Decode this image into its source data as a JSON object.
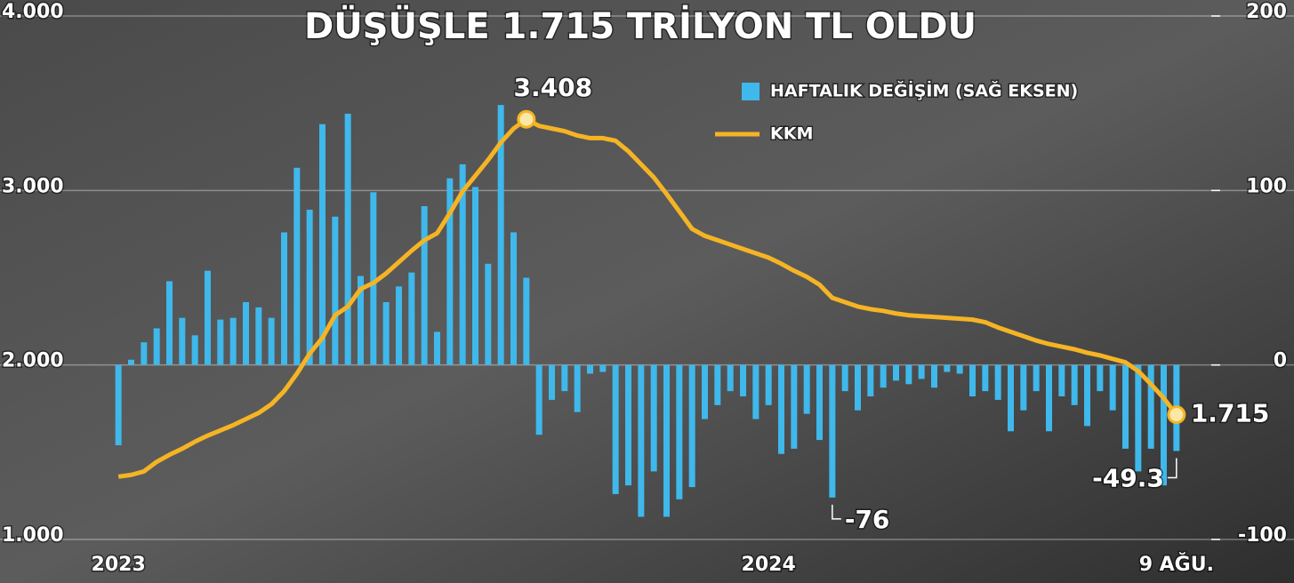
{
  "chart_data": {
    "type": "combo",
    "title": "DÜŞÜŞLE 1.715 TRİLYON TL OLDU",
    "categories": [
      "2023",
      null,
      null,
      null,
      null,
      null,
      null,
      null,
      null,
      null,
      null,
      null,
      null,
      null,
      null,
      null,
      null,
      null,
      null,
      null,
      null,
      null,
      null,
      null,
      null,
      null,
      null,
      null,
      null,
      null,
      null,
      null,
      null,
      null,
      null,
      null,
      null,
      null,
      null,
      null,
      null,
      null,
      null,
      null,
      null,
      null,
      null,
      null,
      null,
      null,
      null,
      "2024",
      null,
      null,
      null,
      null,
      null,
      null,
      null,
      null,
      null,
      null,
      null,
      null,
      null,
      null,
      null,
      null,
      null,
      null,
      null,
      null,
      null,
      null,
      null,
      null,
      null,
      null,
      null,
      null,
      null,
      null,
      null,
      "9 AĞU."
    ],
    "series": [
      {
        "name": "HAFTALIK DEĞİŞİM (SAĞ EKSEN)",
        "type": "bar",
        "axis": "y2",
        "color": "#3fb8ec",
        "values": [
          -46,
          3,
          13,
          21,
          48,
          27,
          17,
          54,
          26,
          27,
          36,
          33,
          27,
          76,
          113,
          89,
          138,
          85,
          144,
          51,
          99,
          36,
          45,
          53,
          91,
          19,
          107,
          115,
          102,
          58,
          149,
          76,
          50,
          -40,
          -20,
          -15,
          -27,
          -5,
          -4,
          -74,
          -69,
          -87,
          -61,
          -87,
          -77,
          -70,
          -31,
          -23,
          -15,
          -18,
          -31,
          -23,
          -51,
          -48,
          -28,
          -43,
          -76,
          -15,
          -26,
          -18,
          -13,
          -9,
          -11,
          -8,
          -13,
          -4,
          -5,
          -18,
          -15,
          -20,
          -38,
          -26,
          -15,
          -38,
          -18,
          -23,
          -35,
          -15,
          -26,
          -48,
          -61,
          -48,
          -69,
          -49.3
        ],
        "value_labels": [
          null,
          null,
          null,
          null,
          null,
          null,
          null,
          null,
          null,
          null,
          null,
          null,
          null,
          null,
          null,
          null,
          null,
          null,
          null,
          null,
          null,
          null,
          null,
          null,
          null,
          null,
          null,
          null,
          null,
          null,
          null,
          null,
          null,
          null,
          null,
          null,
          null,
          null,
          null,
          null,
          null,
          null,
          null,
          null,
          null,
          null,
          null,
          null,
          null,
          null,
          null,
          null,
          null,
          null,
          null,
          null,
          "-76",
          null,
          null,
          null,
          null,
          null,
          null,
          null,
          null,
          null,
          null,
          null,
          null,
          null,
          null,
          null,
          null,
          null,
          null,
          null,
          null,
          null,
          null,
          null,
          null,
          null,
          null,
          "-49.3"
        ]
      },
      {
        "name": "KKM",
        "type": "line",
        "color": "#f5b424",
        "values": [
          1360,
          1370,
          1390,
          1445,
          1485,
          1520,
          1560,
          1595,
          1625,
          1655,
          1690,
          1725,
          1775,
          1850,
          1950,
          2065,
          2155,
          2285,
          2335,
          2435,
          2470,
          2525,
          2590,
          2655,
          2715,
          2755,
          2870,
          2995,
          3085,
          3175,
          3275,
          3355,
          3408,
          3370,
          3355,
          3340,
          3315,
          3300,
          3300,
          3285,
          3225,
          3150,
          3075,
          2980,
          2880,
          2780,
          2740,
          2715,
          2690,
          2665,
          2640,
          2615,
          2580,
          2540,
          2505,
          2460,
          2385,
          2360,
          2335,
          2320,
          2310,
          2295,
          2285,
          2280,
          2275,
          2270,
          2265,
          2260,
          2245,
          2215,
          2190,
          2165,
          2140,
          2120,
          2105,
          2090,
          2070,
          2055,
          2035,
          2015,
          1965,
          1890,
          1810,
          1715
        ],
        "value_labels": [
          null,
          null,
          null,
          null,
          null,
          null,
          null,
          null,
          null,
          null,
          null,
          null,
          null,
          null,
          null,
          null,
          null,
          null,
          null,
          null,
          null,
          null,
          null,
          null,
          null,
          null,
          null,
          null,
          null,
          null,
          null,
          null,
          "3.408",
          null,
          null,
          null,
          null,
          null,
          null,
          null,
          null,
          null,
          null,
          null,
          null,
          null,
          null,
          null,
          null,
          null,
          null,
          null,
          null,
          null,
          null,
          null,
          null,
          null,
          null,
          null,
          null,
          null,
          null,
          null,
          null,
          null,
          null,
          null,
          null,
          null,
          null,
          null,
          null,
          null,
          null,
          null,
          null,
          null,
          null,
          null,
          null,
          null,
          null,
          "1.715"
        ]
      }
    ],
    "ylim": [
      1000,
      4000
    ],
    "yticks": [
      {
        "value": 1000,
        "label": "1.000"
      },
      {
        "value": 2000,
        "label": "2.000"
      },
      {
        "value": 3000,
        "label": "3.000"
      },
      {
        "value": 4000,
        "label": "4.000"
      }
    ],
    "y2lim": [
      -100,
      200
    ],
    "y2ticks": [
      -100,
      0,
      100,
      200
    ],
    "grid": true,
    "legend": "top-right"
  }
}
